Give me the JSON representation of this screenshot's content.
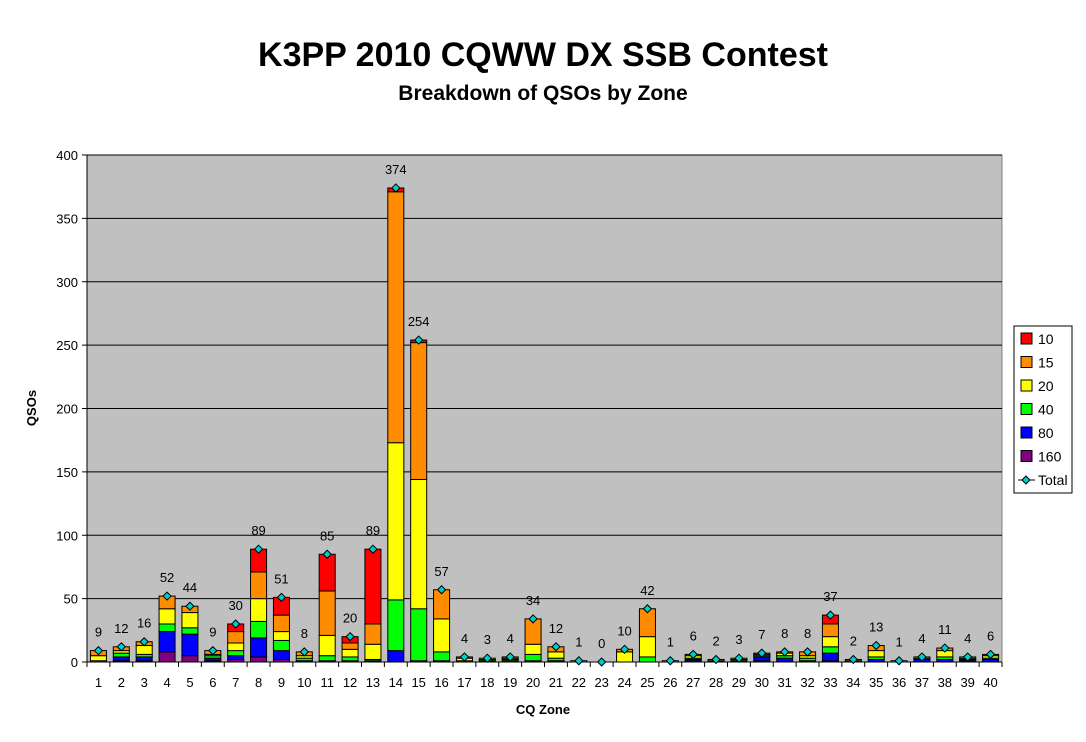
{
  "chart_data": {
    "type": "bar",
    "stacked": true,
    "title": "K3PP 2010 CQWW DX SSB Contest",
    "subtitle": "Breakdown of QSOs by Zone",
    "xlabel": "CQ Zone",
    "ylabel": "QSOs",
    "ylim": [
      0,
      400
    ],
    "yticks": [
      0,
      50,
      100,
      150,
      200,
      250,
      300,
      350,
      400
    ],
    "grid": true,
    "legend": "right",
    "categories": [
      "1",
      "2",
      "3",
      "4",
      "5",
      "6",
      "7",
      "8",
      "9",
      "10",
      "11",
      "12",
      "13",
      "14",
      "15",
      "16",
      "17",
      "18",
      "19",
      "20",
      "21",
      "22",
      "23",
      "24",
      "25",
      "26",
      "27",
      "28",
      "29",
      "30",
      "31",
      "32",
      "33",
      "34",
      "35",
      "36",
      "37",
      "38",
      "39",
      "40"
    ],
    "series": [
      {
        "name": "160",
        "color": "#800080",
        "values": [
          0,
          1,
          1,
          8,
          5,
          1,
          2,
          4,
          2,
          0,
          0,
          0,
          0,
          0,
          0,
          0,
          0,
          0,
          0,
          0,
          0,
          0,
          0,
          0,
          0,
          0,
          1,
          0,
          0,
          1,
          0,
          0,
          1,
          0,
          0,
          0,
          0,
          0,
          1,
          0
        ]
      },
      {
        "name": "80",
        "color": "#0000ff",
        "values": [
          0,
          3,
          3,
          16,
          17,
          2,
          3,
          15,
          7,
          1,
          1,
          1,
          1,
          9,
          1,
          1,
          0,
          1,
          1,
          1,
          1,
          0,
          0,
          0,
          0,
          0,
          1,
          1,
          1,
          3,
          3,
          1,
          6,
          0,
          2,
          0,
          2,
          2,
          1,
          2
        ]
      },
      {
        "name": "40",
        "color": "#00ff00",
        "values": [
          1,
          3,
          2,
          6,
          5,
          2,
          4,
          13,
          8,
          2,
          4,
          3,
          1,
          40,
          41,
          7,
          1,
          1,
          1,
          5,
          2,
          0,
          0,
          0,
          4,
          0,
          1,
          0,
          1,
          1,
          2,
          2,
          5,
          1,
          2,
          0,
          1,
          2,
          1,
          1
        ]
      },
      {
        "name": "20",
        "color": "#ffff00",
        "values": [
          4,
          2,
          7,
          12,
          12,
          1,
          6,
          18,
          7,
          2,
          16,
          6,
          12,
          124,
          102,
          26,
          2,
          1,
          1,
          8,
          5,
          1,
          0,
          8,
          16,
          1,
          2,
          1,
          1,
          1,
          2,
          2,
          8,
          1,
          5,
          1,
          1,
          5,
          1,
          2
        ]
      },
      {
        "name": "15",
        "color": "#ff8c00",
        "values": [
          4,
          3,
          3,
          10,
          5,
          3,
          9,
          21,
          13,
          3,
          35,
          5,
          16,
          198,
          108,
          23,
          1,
          0,
          1,
          20,
          4,
          0,
          0,
          2,
          22,
          0,
          1,
          0,
          0,
          1,
          1,
          3,
          10,
          0,
          4,
          0,
          0,
          2,
          0,
          1
        ]
      },
      {
        "name": "10",
        "color": "#ff0000",
        "values": [
          0,
          0,
          0,
          0,
          0,
          0,
          6,
          18,
          14,
          0,
          29,
          5,
          59,
          3,
          2,
          0,
          0,
          0,
          0,
          0,
          0,
          0,
          0,
          0,
          0,
          0,
          0,
          0,
          0,
          0,
          0,
          0,
          7,
          0,
          0,
          0,
          0,
          0,
          0,
          0
        ]
      }
    ],
    "totals": {
      "name": "Total",
      "color": "#00cccc",
      "values": [
        9,
        12,
        16,
        52,
        44,
        9,
        30,
        89,
        51,
        8,
        85,
        20,
        89,
        374,
        254,
        57,
        4,
        3,
        4,
        34,
        12,
        1,
        0,
        10,
        42,
        1,
        6,
        2,
        3,
        7,
        8,
        8,
        37,
        2,
        13,
        1,
        4,
        11,
        4,
        6
      ]
    }
  }
}
